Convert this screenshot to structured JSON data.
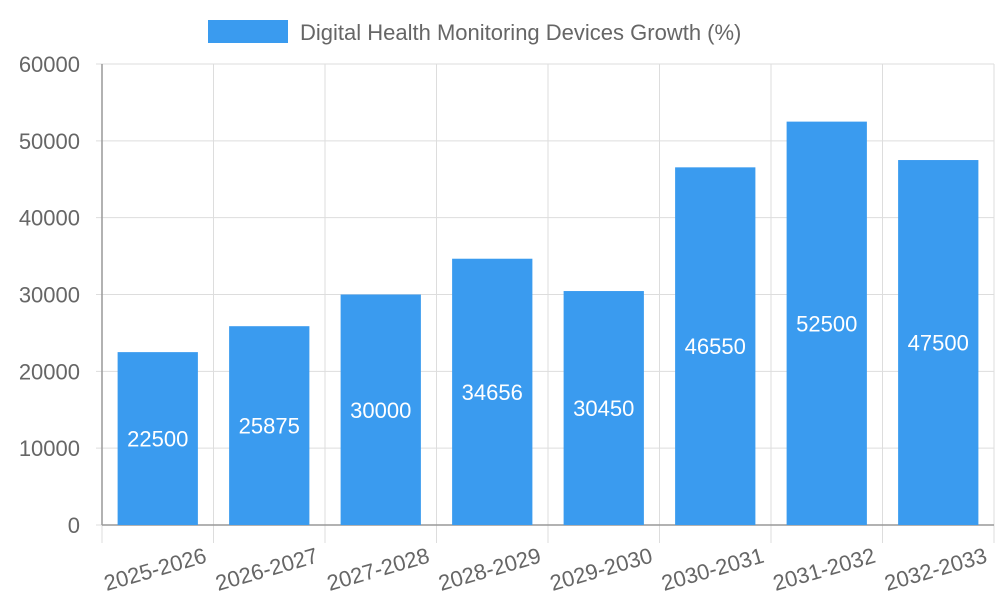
{
  "chart_data": {
    "type": "bar",
    "categories": [
      "2025-2026",
      "2026-2027",
      "2027-2028",
      "2028-2029",
      "2029-2030",
      "2030-2031",
      "2031-2032",
      "2032-2033"
    ],
    "series": [
      {
        "name": "Digital Health Monitoring Devices Growth (%)",
        "values": [
          22500,
          25875,
          30000,
          34656,
          30450,
          46550,
          52500,
          47500
        ],
        "color": "#3a9bef"
      }
    ],
    "yticks": [
      "0",
      "10000",
      "20000",
      "30000",
      "40000",
      "50000",
      "60000"
    ],
    "ylim": [
      0,
      60000
    ],
    "legend_position": "top-center",
    "grid": true,
    "data_labels": true,
    "xtick_rotation": "slanted"
  }
}
